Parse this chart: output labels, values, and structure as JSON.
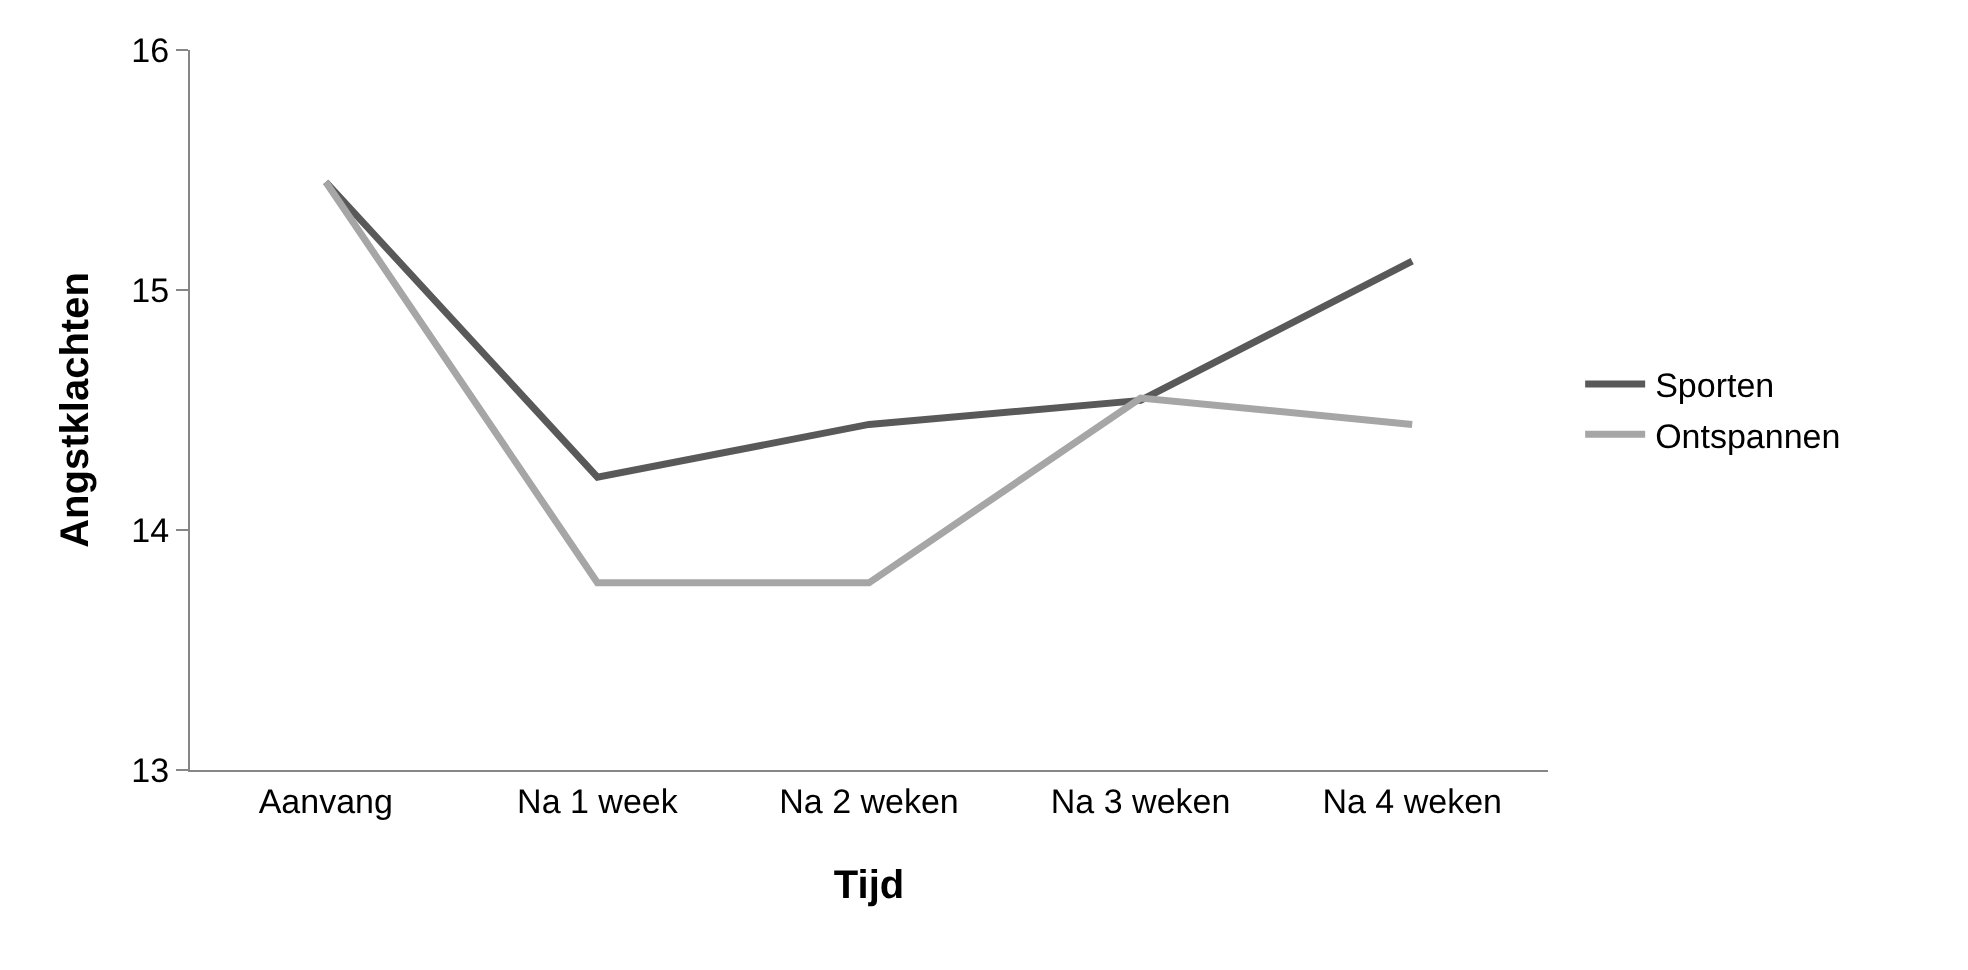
{
  "chart_data": {
    "type": "line",
    "xlabel": "Tijd",
    "ylabel": "Angstklachten",
    "categories": [
      "Aanvang",
      "Na 1 week",
      "Na 2 weken",
      "Na 3 weken",
      "Na 4 weken"
    ],
    "series": [
      {
        "name": "Sporten",
        "color": "#595959",
        "values": [
          15.45,
          14.22,
          14.44,
          14.54,
          15.12
        ]
      },
      {
        "name": "Ontspannen",
        "color": "#a6a6a6",
        "values": [
          15.45,
          13.78,
          13.78,
          14.55,
          14.44
        ]
      }
    ],
    "ylim": [
      13,
      16
    ],
    "yticks": [
      13,
      14,
      15,
      16
    ],
    "grid": false,
    "legend": "right",
    "marker": "none",
    "line_style": "solid"
  }
}
